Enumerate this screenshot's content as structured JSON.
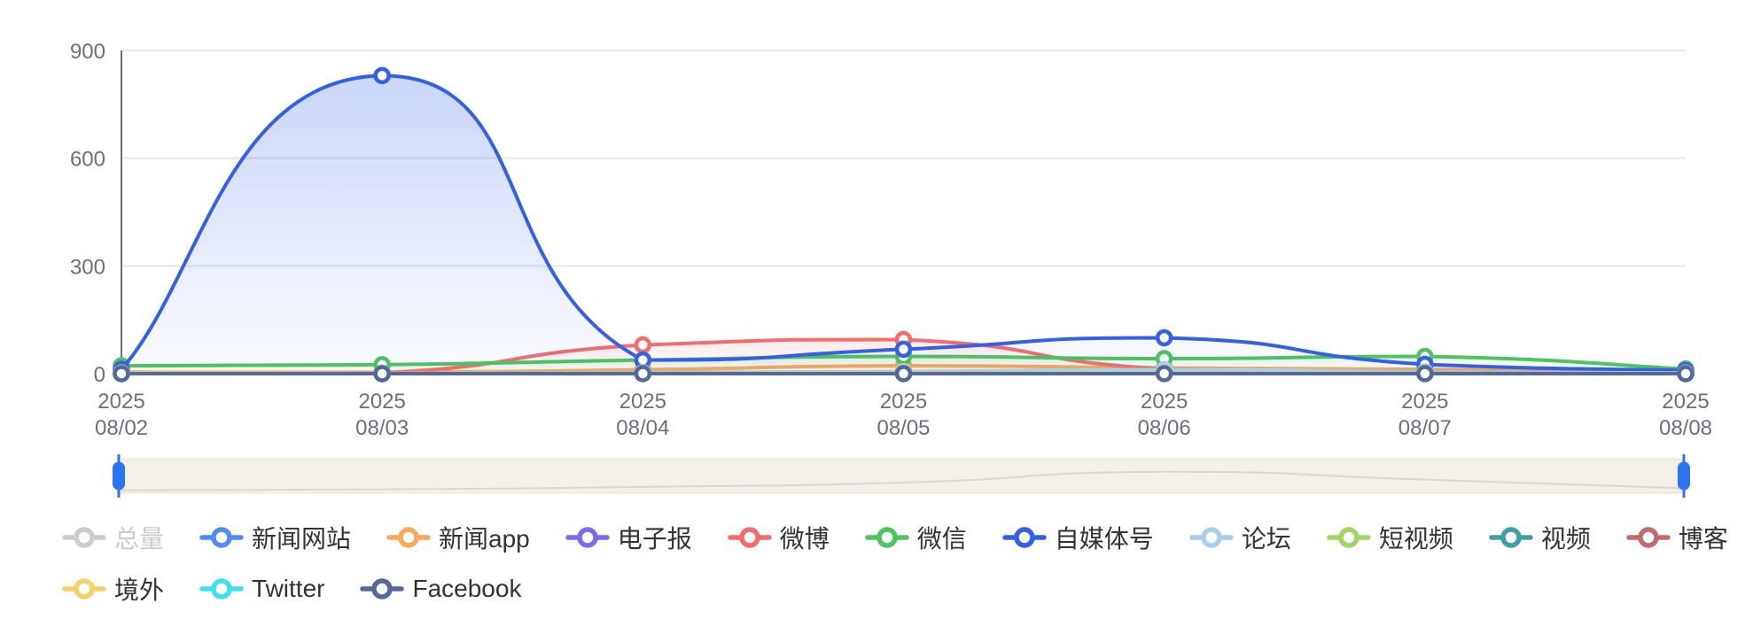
{
  "chart_data": {
    "type": "line",
    "title": "",
    "x_labels": [
      {
        "line1": "2025",
        "line2": "08/02"
      },
      {
        "line1": "2025",
        "line2": "08/03"
      },
      {
        "line1": "2025",
        "line2": "08/04"
      },
      {
        "line1": "2025",
        "line2": "08/05"
      },
      {
        "line1": "2025",
        "line2": "08/06"
      },
      {
        "line1": "2025",
        "line2": "08/07"
      },
      {
        "line1": "2025",
        "line2": "08/08"
      }
    ],
    "ylim": [
      0,
      900
    ],
    "yticks": [
      0,
      300,
      600,
      900
    ],
    "grid": "horizontal-lines",
    "legend_position": "bottom",
    "series": [
      {
        "name": "总量",
        "color": "#c4c8cf",
        "selected": false,
        "values": [],
        "area_opacity": 0
      },
      {
        "name": "新闻网站",
        "color": "#4e8cf6",
        "selected": true,
        "values": [
          4,
          3,
          3,
          5,
          9,
          7,
          4
        ],
        "area_opacity": 0.1
      },
      {
        "name": "新闻app",
        "color": "#f9a95d",
        "selected": true,
        "values": [
          4,
          4,
          11,
          22,
          16,
          12,
          5
        ],
        "area_opacity": 0.1
      },
      {
        "name": "电子报",
        "color": "#7a6bf0",
        "selected": true,
        "values": [
          0,
          0,
          1,
          1,
          1,
          1,
          0
        ],
        "area_opacity": 0.08
      },
      {
        "name": "微博",
        "color": "#f56c6c",
        "selected": true,
        "values": [
          2,
          2,
          80,
          95,
          13,
          6,
          4
        ],
        "area_opacity": 0.14
      },
      {
        "name": "微信",
        "color": "#4dc45f",
        "selected": true,
        "values": [
          22,
          25,
          38,
          48,
          42,
          48,
          13
        ],
        "area_opacity": 0.12
      },
      {
        "name": "自媒体号",
        "color": "#3360e6",
        "selected": true,
        "values": [
          12,
          830,
          38,
          68,
          100,
          26,
          9
        ],
        "area_opacity": 0.26
      },
      {
        "name": "论坛",
        "color": "#a9ccf1",
        "selected": true,
        "values": [
          1,
          1,
          3,
          6,
          11,
          5,
          2
        ],
        "area_opacity": 0.1
      },
      {
        "name": "短视频",
        "color": "#a3d566",
        "selected": true,
        "values": [
          1,
          1,
          2,
          2,
          2,
          3,
          1
        ],
        "area_opacity": 0.08
      },
      {
        "name": "视频",
        "color": "#3d9faa",
        "selected": true,
        "values": [
          1,
          1,
          1,
          2,
          2,
          2,
          1
        ],
        "area_opacity": 0.08
      },
      {
        "name": "博客",
        "color": "#c56a6a",
        "selected": true,
        "values": [
          1,
          1,
          2,
          3,
          2,
          2,
          1
        ],
        "area_opacity": 0.08
      },
      {
        "name": "境外",
        "color": "#f7cf67",
        "selected": true,
        "values": [
          2,
          1,
          2,
          3,
          3,
          2,
          1
        ],
        "area_opacity": 0.08
      },
      {
        "name": "Twitter",
        "color": "#3fe0f0",
        "selected": true,
        "values": [
          0,
          0,
          1,
          1,
          1,
          1,
          0
        ],
        "area_opacity": 0.08
      },
      {
        "name": "Facebook",
        "color": "#55689b",
        "selected": true,
        "values": [
          0,
          0,
          0,
          0,
          0,
          0,
          0
        ],
        "area_opacity": 0.08
      }
    ]
  },
  "axis": {
    "label_color": "#6E7079",
    "grid_color": "#E8E8EC",
    "axis_line_color": "#6E7079"
  },
  "legend": {
    "row_split": 11,
    "label_color": "#333333",
    "disabled_color": "#cccccc"
  },
  "slider": {
    "track_color": "#f4efe7",
    "border_color": "#ece3d6",
    "shadow_color": "#dbd7d0",
    "handle_color": "#2d74f2",
    "shadow_profile": [
      6,
      8,
      13,
      22,
      44,
      28,
      10
    ]
  }
}
